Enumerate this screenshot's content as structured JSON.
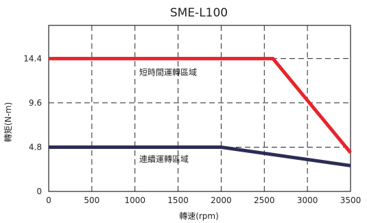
{
  "chart_data": {
    "type": "line",
    "title": "SME-L100",
    "xlabel": "轉速(rpm)",
    "ylabel": "轉矩(N-m)",
    "xlim": [
      0,
      3500
    ],
    "ylim": [
      0,
      18
    ],
    "x_ticks": [
      0,
      500,
      1000,
      1500,
      2000,
      2500,
      3000,
      3500
    ],
    "y_ticks": [
      0,
      4.8,
      9.6,
      14.4
    ],
    "y_tick_labels": [
      "0",
      "4.8",
      "9.6",
      "14.4"
    ],
    "grid": true,
    "series": [
      {
        "color": "#e8242c",
        "points": [
          [
            0,
            14.4
          ],
          [
            2600,
            14.4
          ],
          [
            3500,
            4.2
          ]
        ]
      },
      {
        "color": "#2b2d55",
        "points": [
          [
            0,
            4.8
          ],
          [
            2000,
            4.8
          ],
          [
            3500,
            2.8
          ]
        ]
      }
    ],
    "annotations": [
      {
        "text": "短時間運轉區域",
        "x": 1050,
        "y": 12.9
      },
      {
        "text": "連續運轉區域",
        "x": 1050,
        "y": 3.5
      }
    ]
  }
}
